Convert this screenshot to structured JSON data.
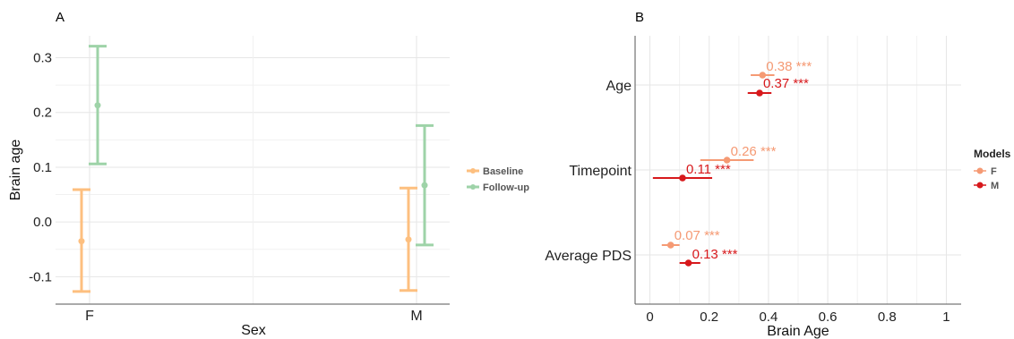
{
  "chart_data": [
    {
      "panel_label": "A",
      "type": "scatter",
      "subtype": "point-with-error-bars",
      "xlabel": "Sex",
      "ylabel": "Brain age",
      "categories": [
        "F",
        "M"
      ],
      "ylim": [
        -0.15,
        0.34
      ],
      "yticks": [
        -0.1,
        0.0,
        0.1,
        0.2,
        0.3
      ],
      "ytick_labels": [
        "-0.1",
        "0.0",
        "0.1",
        "0.2",
        "0.3"
      ],
      "grid": true,
      "legend_placement": "right",
      "series": [
        {
          "name": "Baseline",
          "color": "#FDBF7F",
          "values": [
            -0.035,
            -0.032
          ],
          "lower": [
            -0.127,
            -0.125
          ],
          "upper": [
            0.059,
            0.062
          ]
        },
        {
          "name": "Follow-up",
          "color": "#9ED3A8",
          "values": [
            0.213,
            0.067
          ],
          "lower": [
            0.106,
            -0.042
          ],
          "upper": [
            0.321,
            0.176
          ]
        }
      ]
    },
    {
      "panel_label": "B",
      "type": "scatter",
      "subtype": "forest-plot",
      "xlabel": "Brain Age",
      "ylabel": "",
      "categories": [
        "Age",
        "Timepoint",
        "Average PDS"
      ],
      "xlim": [
        -0.05,
        1.05
      ],
      "xticks": [
        0,
        0.2,
        0.4,
        0.6,
        0.8,
        1
      ],
      "xtick_labels": [
        "0",
        "0.2",
        "0.4",
        "0.6",
        "0.8",
        "1"
      ],
      "grid": true,
      "legend_title": "Models",
      "legend_placement": "right",
      "series": [
        {
          "name": "F",
          "color": "#F59A74",
          "values": [
            0.38,
            0.26,
            0.07
          ],
          "lower": [
            0.34,
            0.17,
            0.04
          ],
          "upper": [
            0.42,
            0.35,
            0.1
          ],
          "labels": [
            "0.38 ***",
            "0.26 ***",
            "0.07 ***"
          ]
        },
        {
          "name": "M",
          "color": "#D7191C",
          "values": [
            0.37,
            0.11,
            0.13
          ],
          "lower": [
            0.33,
            0.01,
            0.1
          ],
          "upper": [
            0.41,
            0.21,
            0.17
          ],
          "labels": [
            "0.37 ***",
            "0.11 ***",
            "0.13 ***"
          ]
        }
      ]
    }
  ]
}
